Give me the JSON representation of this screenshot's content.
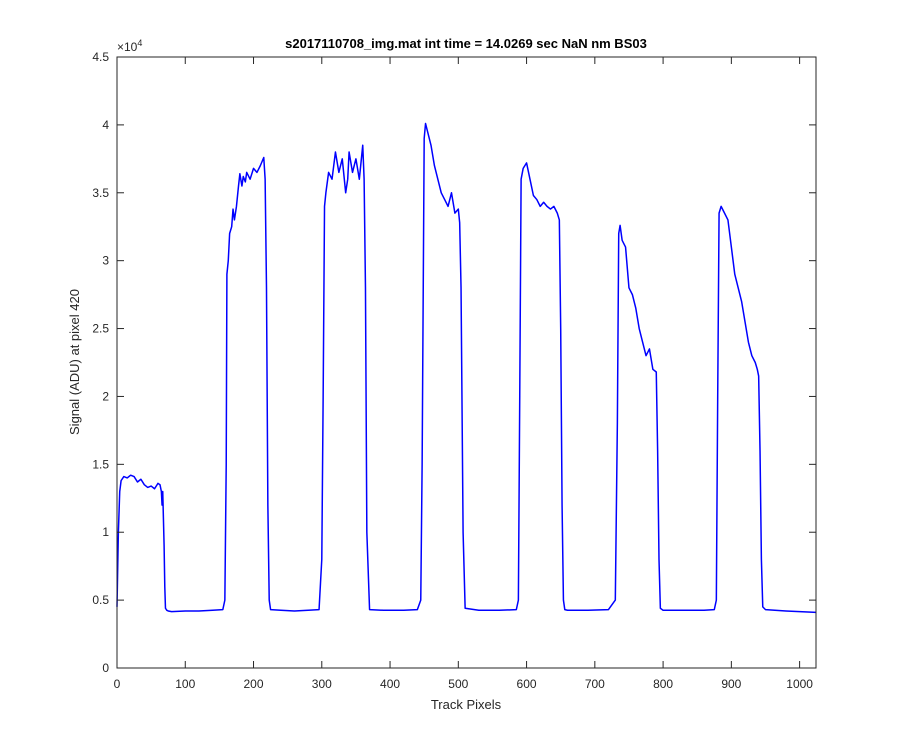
{
  "chart_data": {
    "type": "line",
    "title": "s2017110708_img.mat int time = 14.0269 sec  NaN nm BS03",
    "xlabel": "Track Pixels",
    "ylabel": "Signal (ADU) at pixel 420",
    "y_exponent_label": "×10",
    "y_exponent_power": "4",
    "xlim": [
      0,
      1024
    ],
    "ylim": [
      0,
      45000
    ],
    "x_ticks": [
      0,
      100,
      200,
      300,
      400,
      500,
      600,
      700,
      800,
      900,
      1000
    ],
    "x_tick_labels": [
      "0",
      "100",
      "200",
      "300",
      "400",
      "500",
      "600",
      "700",
      "800",
      "900",
      "1000"
    ],
    "y_ticks": [
      0,
      5000,
      10000,
      15000,
      20000,
      25000,
      30000,
      35000,
      40000,
      45000
    ],
    "y_tick_labels": [
      "0",
      "0.5",
      "1",
      "1.5",
      "2",
      "2.5",
      "3",
      "3.5",
      "4",
      "4.5"
    ],
    "grid": false,
    "line_color": "#0000ff",
    "series": [
      {
        "x": [
          0,
          2,
          4,
          6,
          10,
          15,
          20,
          25,
          30,
          35,
          40,
          45,
          50,
          55,
          60,
          63,
          65,
          66,
          67,
          68,
          69,
          70,
          71,
          73,
          75,
          80,
          100,
          120,
          140,
          155,
          158,
          160,
          161,
          163,
          165,
          168,
          170,
          172,
          175,
          178,
          180,
          183,
          185,
          188,
          190,
          195,
          200,
          205,
          210,
          215,
          217,
          219,
          221,
          223,
          225,
          240,
          260,
          280,
          296,
          300,
          302,
          304,
          306,
          310,
          315,
          320,
          325,
          330,
          335,
          338,
          340,
          345,
          350,
          355,
          360,
          362,
          364,
          366,
          370,
          390,
          420,
          440,
          445,
          447,
          450,
          452,
          455,
          460,
          465,
          470,
          475,
          480,
          485,
          490,
          495,
          500,
          502,
          504,
          507,
          510,
          530,
          560,
          585,
          588,
          590,
          592,
          595,
          600,
          605,
          610,
          615,
          620,
          625,
          630,
          635,
          640,
          645,
          648,
          650,
          652,
          654,
          656,
          660,
          690,
          720,
          730,
          733,
          735,
          737,
          740,
          745,
          750,
          755,
          760,
          765,
          770,
          775,
          780,
          785,
          790,
          792,
          794,
          796,
          800,
          830,
          860,
          875,
          878,
          880,
          882,
          885,
          890,
          895,
          900,
          905,
          910,
          915,
          920,
          925,
          930,
          935,
          938,
          940,
          942,
          944,
          946,
          950,
          980,
          1000,
          1024
        ],
        "y": [
          4500,
          10000,
          13000,
          13800,
          14100,
          14000,
          14200,
          14100,
          13700,
          13900,
          13500,
          13300,
          13400,
          13200,
          13600,
          13500,
          13000,
          12000,
          13000,
          11000,
          9000,
          6000,
          4400,
          4250,
          4200,
          4150,
          4200,
          4200,
          4250,
          4300,
          5000,
          15000,
          29000,
          30000,
          32000,
          32500,
          33800,
          33000,
          34000,
          35500,
          36400,
          35500,
          36200,
          35800,
          36500,
          36000,
          36800,
          36500,
          37000,
          37600,
          36000,
          28000,
          12000,
          5000,
          4300,
          4250,
          4200,
          4250,
          4300,
          8000,
          20000,
          34000,
          35000,
          36500,
          36000,
          38000,
          36500,
          37500,
          35000,
          36000,
          38000,
          36500,
          37500,
          36000,
          38500,
          36000,
          28000,
          10000,
          4300,
          4250,
          4250,
          4300,
          5000,
          15000,
          39000,
          40100,
          39500,
          38500,
          37000,
          36000,
          35000,
          34500,
          34000,
          35000,
          33500,
          33800,
          32800,
          28000,
          10000,
          4400,
          4250,
          4250,
          4300,
          5000,
          20000,
          36000,
          36800,
          37200,
          36000,
          34800,
          34500,
          34000,
          34300,
          34000,
          33800,
          34000,
          33500,
          33000,
          25000,
          12000,
          5000,
          4300,
          4250,
          4250,
          4300,
          5000,
          18000,
          32000,
          32600,
          31500,
          31000,
          28000,
          27500,
          26500,
          25000,
          24000,
          23000,
          23500,
          22000,
          21800,
          16000,
          8000,
          4400,
          4250,
          4250,
          4250,
          4300,
          5000,
          20000,
          33500,
          34000,
          33500,
          33000,
          31000,
          29000,
          28000,
          27000,
          25500,
          24000,
          23000,
          22500,
          22000,
          21500,
          16000,
          8000,
          4500,
          4300,
          4200,
          4150,
          4100
        ]
      }
    ]
  }
}
